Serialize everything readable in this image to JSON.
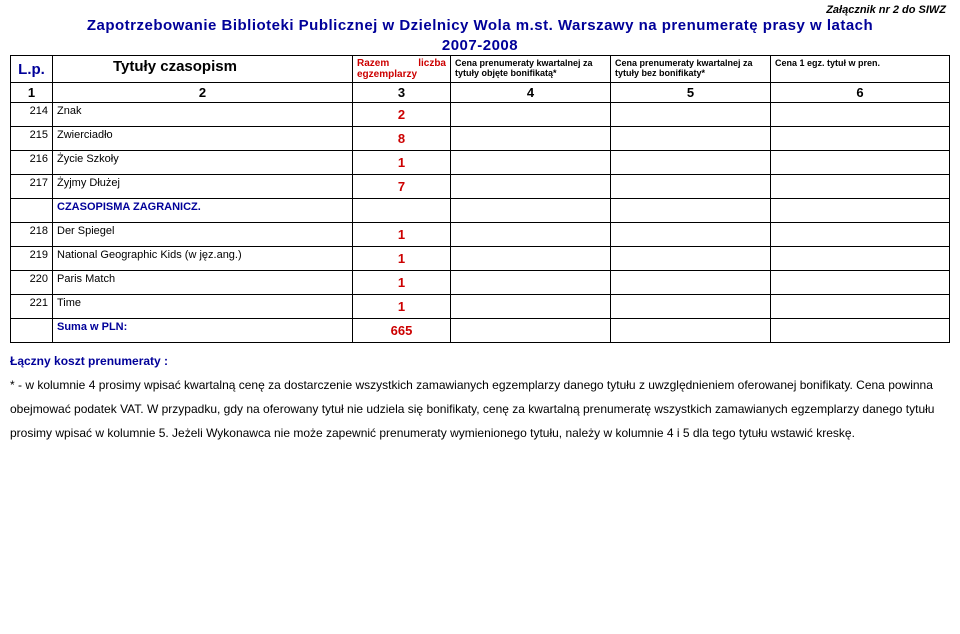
{
  "attachment": "Załącznik nr 2 do SIWZ",
  "title_line1": "Zapotrzebowanie Biblioteki Publicznej w Dzielnicy Wola m.st. Warszawy na prenumeratę prasy w latach",
  "title_line2": "2007-2008",
  "header": {
    "lp": "L.p.",
    "titles": "Tytuły czasopism",
    "razem": "Razem liczba egzemplarzy",
    "col4": "Cena prenumeraty kwartalnej za tytuły objęte bonifikatą*",
    "col5": "Cena prenumeraty kwartalnej za tytuły bez bonifikaty*",
    "col6": "Cena 1 egz. tytuł w pren."
  },
  "numrow": {
    "c1": "1",
    "c2": "2",
    "c3": "3",
    "c4": "4",
    "c5": "5",
    "c6": "6"
  },
  "rows": [
    {
      "lp": "214",
      "title": "Znak",
      "qty": "2"
    },
    {
      "lp": "215",
      "title": "Zwierciadło",
      "qty": "8"
    },
    {
      "lp": "216",
      "title": "Życie Szkoły",
      "qty": "1"
    },
    {
      "lp": "217",
      "title": "Żyjmy Dłużej",
      "qty": "7"
    }
  ],
  "section": "CZASOPISMA ZAGRANICZ.",
  "rows2": [
    {
      "lp": "218",
      "title": "Der Spiegel",
      "qty": "1"
    },
    {
      "lp": "219",
      "title": "National Geographic Kids (w jęz.ang.)",
      "qty": "1"
    },
    {
      "lp": "220",
      "title": "Paris Match",
      "qty": "1"
    },
    {
      "lp": "221",
      "title": "Time",
      "qty": "1"
    }
  ],
  "sum_label": "Suma w PLN:",
  "sum_value": "665",
  "footer_heading": "Łączny koszt prenumeraty :",
  "footer_body": "* - w kolumnie 4 prosimy wpisać kwartalną cenę za dostarczenie wszystkich zamawianych egzemplarzy danego tytułu z uwzględnieniem oferowanej bonifikaty. Cena powinna obejmować podatek VAT. W przypadku, gdy na oferowany tytuł nie udziela się bonifikaty, cenę za kwartalną prenumeratę wszystkich zamawianych egzemplarzy danego tytułu prosimy wpisać w kolumnie 5. Jeżeli Wykonawca nie może zapewnić prenumeraty wymienionego tytułu, należy w kolumnie 4 i 5 dla tego tytułu wstawić kreskę."
}
